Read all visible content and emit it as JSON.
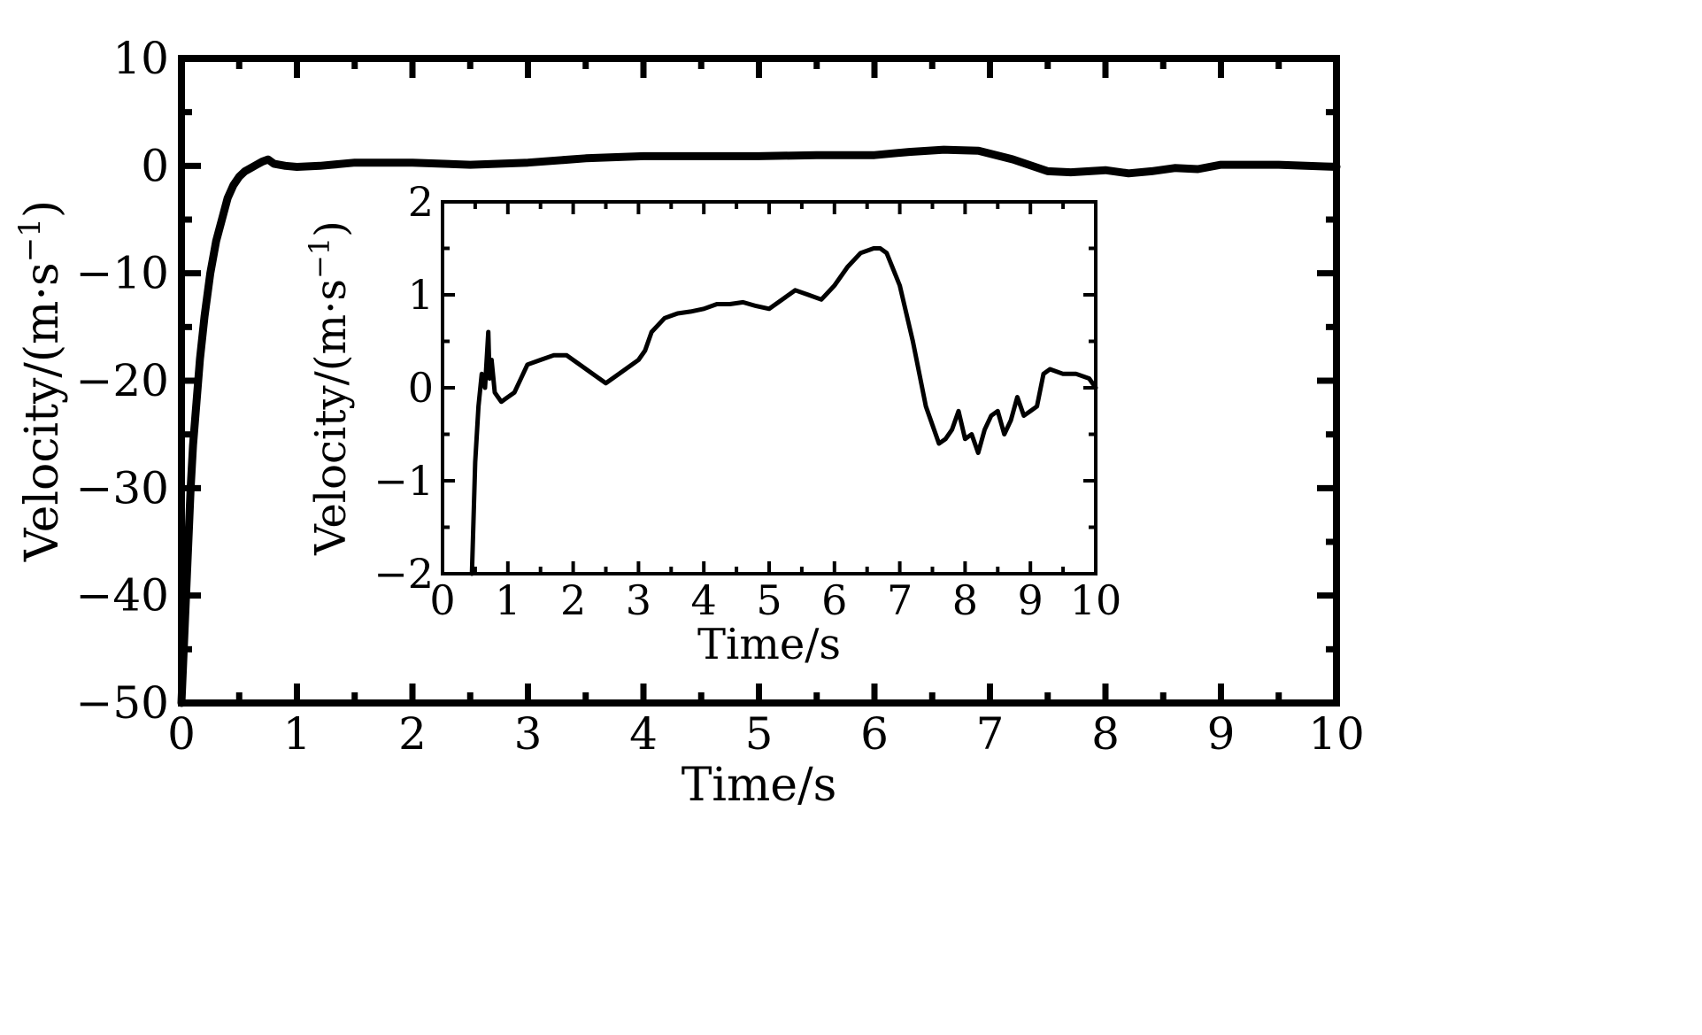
{
  "chart_data": [
    {
      "type": "line",
      "panel": "main",
      "xlabel": "Time/s",
      "ylabel_prefix": "Velocity/(m·s",
      "ylabel_sup": "−1",
      "ylabel_suffix": ")",
      "xlim": [
        0,
        10
      ],
      "ylim": [
        -50,
        10
      ],
      "xticks": [
        0,
        1,
        2,
        3,
        4,
        5,
        6,
        7,
        8,
        9,
        10
      ],
      "xtick_labels": [
        "0",
        "1",
        "2",
        "3",
        "4",
        "5",
        "6",
        "7",
        "8",
        "9",
        "10"
      ],
      "yticks": [
        -50,
        -40,
        -30,
        -20,
        -10,
        0,
        10
      ],
      "ytick_labels": [
        "−50",
        "−40",
        "−30",
        "−20",
        "−10",
        "0",
        "10"
      ],
      "grid": false,
      "series": [
        {
          "x": [
            0,
            0.02,
            0.04,
            0.06,
            0.08,
            0.1,
            0.13,
            0.16,
            0.2,
            0.25,
            0.3,
            0.35,
            0.4,
            0.45,
            0.5,
            0.55,
            0.6,
            0.65,
            0.7,
            0.75,
            0.8,
            0.9,
            1.0,
            1.2,
            1.5,
            2.0,
            2.5,
            3.0,
            3.5,
            4.0,
            4.5,
            5.0,
            5.5,
            6.0,
            6.3,
            6.6,
            6.9,
            7.2,
            7.5,
            7.7,
            8.0,
            8.2,
            8.4,
            8.6,
            8.8,
            9.0,
            9.2,
            9.5,
            10.0
          ],
          "y": [
            -50,
            -45,
            -40,
            -35,
            -30,
            -26,
            -22,
            -18,
            -14,
            -10,
            -7,
            -5,
            -3,
            -1.8,
            -1,
            -0.5,
            -0.2,
            0.1,
            0.4,
            0.6,
            0.2,
            0,
            -0.1,
            0,
            0.3,
            0.3,
            0.1,
            0.3,
            0.7,
            0.9,
            0.9,
            0.9,
            1.0,
            1.0,
            1.3,
            1.5,
            1.4,
            0.6,
            -0.5,
            -0.6,
            -0.4,
            -0.7,
            -0.5,
            -0.2,
            -0.3,
            0.1,
            0.1,
            0.1,
            -0.1
          ]
        }
      ]
    },
    {
      "type": "line",
      "panel": "inset",
      "xlabel": "Time/s",
      "ylabel_prefix": "Velocity/(m·s",
      "ylabel_sup": "−1",
      "ylabel_suffix": ")",
      "xlim": [
        0,
        10
      ],
      "ylim": [
        -2,
        2
      ],
      "xticks": [
        0,
        1,
        2,
        3,
        4,
        5,
        6,
        7,
        8,
        9,
        10
      ],
      "xtick_labels": [
        "0",
        "1",
        "2",
        "3",
        "4",
        "5",
        "6",
        "7",
        "8",
        "9",
        "10"
      ],
      "yticks": [
        -2,
        -1,
        0,
        1,
        2
      ],
      "ytick_labels": [
        "−2",
        "−1",
        "0",
        "1",
        "2"
      ],
      "grid": false,
      "series": [
        {
          "x": [
            0.45,
            0.5,
            0.55,
            0.6,
            0.65,
            0.7,
            0.72,
            0.75,
            0.8,
            0.9,
            1.0,
            1.1,
            1.2,
            1.3,
            1.5,
            1.7,
            1.9,
            2.1,
            2.3,
            2.5,
            2.7,
            2.9,
            3.0,
            3.1,
            3.2,
            3.4,
            3.6,
            3.8,
            4.0,
            4.2,
            4.4,
            4.6,
            4.8,
            5.0,
            5.2,
            5.4,
            5.6,
            5.8,
            6.0,
            6.2,
            6.4,
            6.6,
            6.7,
            6.8,
            7.0,
            7.2,
            7.4,
            7.6,
            7.7,
            7.8,
            7.9,
            8.0,
            8.1,
            8.2,
            8.3,
            8.4,
            8.5,
            8.6,
            8.7,
            8.8,
            8.9,
            9.0,
            9.1,
            9.2,
            9.3,
            9.5,
            9.7,
            9.9,
            10.0
          ],
          "y": [
            -2.0,
            -0.8,
            -0.2,
            0.15,
            0.0,
            0.6,
            0.1,
            0.3,
            -0.05,
            -0.15,
            -0.1,
            -0.05,
            0.1,
            0.25,
            0.3,
            0.35,
            0.35,
            0.25,
            0.15,
            0.05,
            0.15,
            0.25,
            0.3,
            0.4,
            0.6,
            0.75,
            0.8,
            0.82,
            0.85,
            0.9,
            0.9,
            0.92,
            0.88,
            0.85,
            0.95,
            1.05,
            1.0,
            0.95,
            1.1,
            1.3,
            1.45,
            1.5,
            1.5,
            1.45,
            1.1,
            0.5,
            -0.2,
            -0.6,
            -0.55,
            -0.45,
            -0.25,
            -0.55,
            -0.5,
            -0.7,
            -0.45,
            -0.3,
            -0.25,
            -0.5,
            -0.35,
            -0.1,
            -0.3,
            -0.25,
            -0.2,
            0.15,
            0.2,
            0.15,
            0.15,
            0.1,
            0.0
          ]
        }
      ]
    }
  ]
}
